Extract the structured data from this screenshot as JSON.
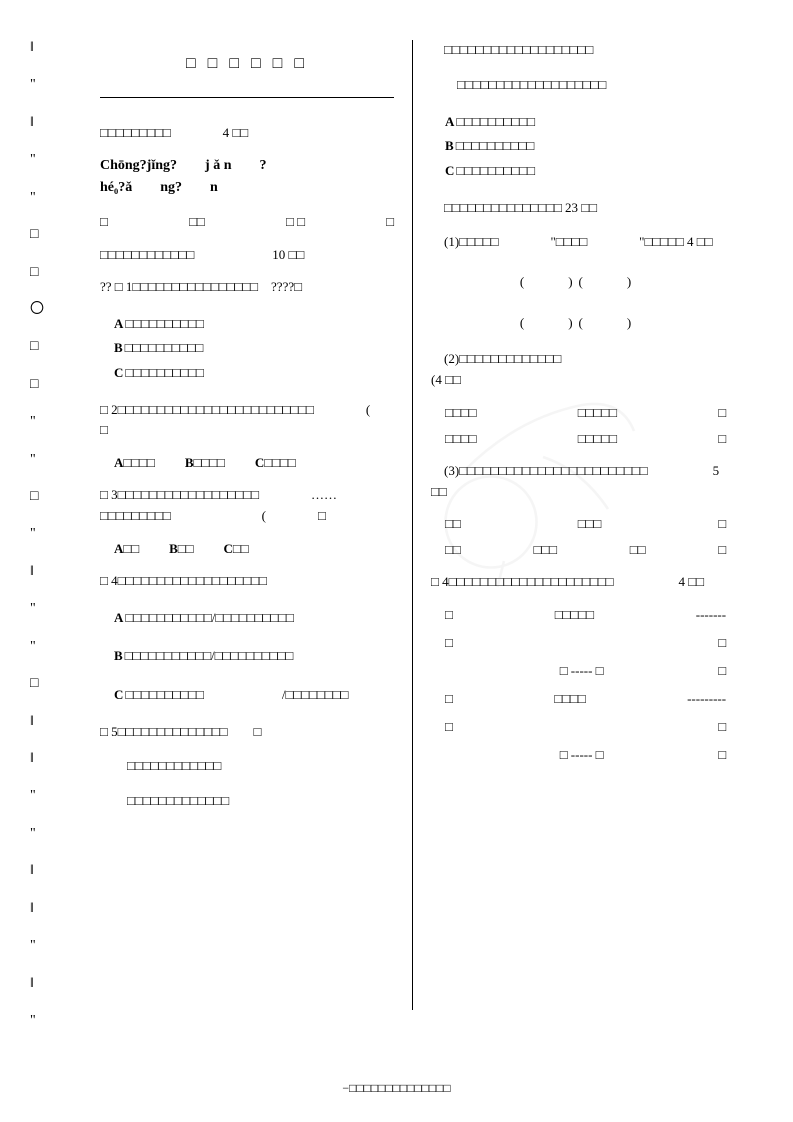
{
  "sideMarks": [
    "‖",
    "\"",
    "‖",
    "\"",
    "\"",
    "□",
    "□",
    "〇",
    "□",
    "□",
    "\"",
    "\"",
    "□",
    "\"",
    "‖",
    "\"",
    "\"",
    "□",
    "‖",
    "‖",
    "\"",
    "\"",
    "‖",
    "‖",
    "\"",
    "‖",
    "\""
  ],
  "leftCol": {
    "title": "□ □ □ □ □ □",
    "section1": "□□□□□□□□□　　　　4 □□",
    "pinyinLine1": [
      "Chōng?jǐng?",
      "j ǎ n",
      "?"
    ],
    "pinyinLine2": [
      "hé₀?ǎ",
      "ng?",
      "n"
    ],
    "fillRow": [
      "□",
      "□□",
      "□ □",
      "□"
    ],
    "section2": "□□□□□□□□□□□□　　　　　　10 □□",
    "q1": "?? □ 1□□□□□□□□□□□□□□□□　????□",
    "q1opts": [
      "□□□□□□□□□□",
      "□□□□□□□□□□",
      "□□□□□□□□□□"
    ],
    "q2": "□ 2□□□□□□□□□□□□□□□□□□□□□□□□□　　　　(　　　　□",
    "q2opts": [
      "□□□□",
      "□□□□",
      "□□□□"
    ],
    "q3": "□ 3□□□□□□□□□□□□□□□□□□　　　　……□□□□□□□□□　　　　　　　(　　　　□",
    "q3opts": [
      "□□",
      "□□",
      "□□"
    ],
    "q4": "□ 4□□□□□□□□□□□□□□□□□□□",
    "q4optA": "□□□□□□□□□□□/□□□□□□□□□□",
    "q4optB": "□□□□□□□□□□□/□□□□□□□□□□",
    "q4optC": "□□□□□□□□□□　　　　　　/□□□□□□□□",
    "q5": "□ 5□□□□□□□□□□□□□□　　□",
    "q5line1": "　□□□□□□□□□□□□",
    "q5line2": "　□□□□□□□□□□□□□"
  },
  "rightCol": {
    "line1": "　□□□□□□□□□□□□□□□□□□□",
    "line2": "　　□□□□□□□□□□□□□□□□□□□",
    "opts": [
      "□□□□□□□□□□",
      "□□□□□□□□□□",
      "□□□□□□□□□□"
    ],
    "section3": "　□□□□□□□□□□□□□□□ 23 □□",
    "sub1": "　(1)□□□□□　　　　\"□□□□　　　　\"□□□□□ 4 □□",
    "paren1": "(　　)(　　)",
    "paren2": "(　　)(　　)",
    "sub2": "　(2)□□□□□□□□□□□□□　　　　　　　　　　　　　　(4 □□",
    "ex": [
      [
        "□□□□",
        "□□□□□",
        "□"
      ],
      [
        "□□□□",
        "□□□□□",
        "□"
      ]
    ],
    "sub3": "　(3)□□□□□□□□□□□□□□□□□□□□□□□□　　　　　5 □□",
    "ex3": [
      [
        "□□",
        "□□□",
        "□"
      ],
      [
        "□□",
        "□□□",
        "□□",
        "□"
      ]
    ],
    "q4": "□ 4□□□□□□□□□□□□□□□□□□□□□　　　　　4 □□",
    "idioms": [
      [
        "□",
        "□□□□□",
        "-------"
      ],
      [
        "□",
        "",
        "□"
      ],
      [
        "",
        "□ ----- □",
        "□"
      ],
      [
        "□",
        "□□□□",
        "---------"
      ],
      [
        "□",
        "",
        "□"
      ],
      [
        "",
        "□ ----- □",
        "□"
      ]
    ]
  },
  "footer": "−□□□□□□□□□□□□□□"
}
